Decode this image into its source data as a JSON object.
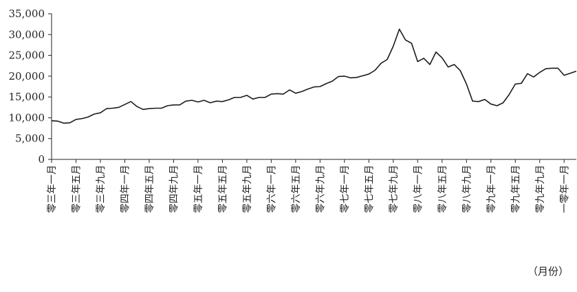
{
  "chart_data": {
    "type": "line",
    "title": "",
    "xlabel": "",
    "ylabel": "",
    "x_unit_label": "（月份）",
    "ylim": [
      0,
      35000
    ],
    "y_ticks": [
      "0",
      "5,000",
      "10,000",
      "15,000",
      "20,000",
      "25,000",
      "30,000",
      "35,000"
    ],
    "y_tick_values": [
      0,
      5000,
      10000,
      15000,
      20000,
      25000,
      30000,
      35000
    ],
    "grid": false,
    "line_color": "#1a1a1a",
    "x_tick_labels": [
      "零三年一月",
      "零三年五月",
      "零三年九月",
      "零四年一月",
      "零四年五月",
      "零四年九月",
      "零五年一月",
      "零五年五月",
      "零五年九月",
      "零六年一月",
      "零六年五月",
      "零六年九月",
      "零七年一月",
      "零七年五月",
      "零七年九月",
      "零八年一月",
      "零八年五月",
      "零八年九月",
      "零九年一月",
      "零九年五月",
      "零九年九月",
      "一零年一月"
    ],
    "x_tick_month_index": [
      0,
      4,
      8,
      12,
      16,
      20,
      24,
      28,
      32,
      36,
      40,
      44,
      48,
      52,
      56,
      60,
      64,
      68,
      72,
      76,
      80,
      84
    ],
    "series": [
      {
        "values": [
          9300,
          9200,
          8700,
          8800,
          9600,
          9800,
          10200,
          10900,
          11200,
          12200,
          12300,
          12500,
          13200,
          13900,
          12700,
          12000,
          12200,
          12300,
          12300,
          12900,
          13100,
          13100,
          14000,
          14200,
          13800,
          14200,
          13600,
          14000,
          13900,
          14300,
          14900,
          14900,
          15400,
          14500,
          14900,
          14900,
          15700,
          15800,
          15700,
          16700,
          15900,
          16300,
          16900,
          17400,
          17500,
          18200,
          18800,
          19900,
          20000,
          19600,
          19700,
          20100,
          20500,
          21400,
          23100,
          24000,
          27200,
          31300,
          28700,
          27900,
          23500,
          24300,
          22800,
          25800,
          24400,
          22200,
          22800,
          21300,
          18100,
          14000,
          13900,
          14400,
          13300,
          12900,
          13600,
          15600,
          18100,
          18300,
          20600,
          19800,
          20900,
          21800,
          21900,
          21900,
          20200,
          20700,
          21200
        ]
      }
    ]
  }
}
